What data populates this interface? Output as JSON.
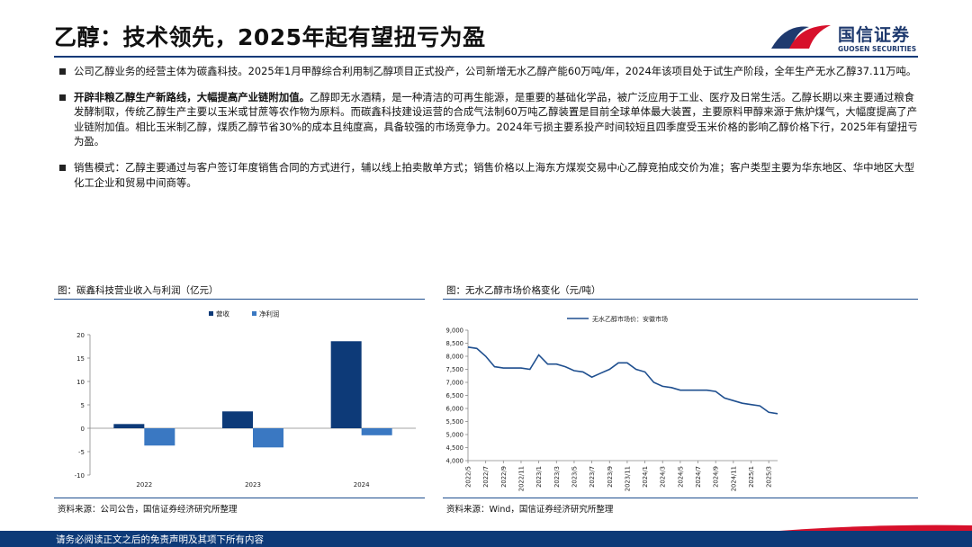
{
  "page": {
    "title": "乙醇：技术领先，2025年起有望扭亏为盈",
    "logo_cn": "国信证券",
    "logo_en": "GUOSEN SECURITIES",
    "footer": "请务必阅读正文之后的免责声明及其项下所有内容"
  },
  "bullets": [
    {
      "bold": "",
      "text": "公司乙醇业务的经营主体为碳鑫科技。2025年1月甲醇综合利用制乙醇项目正式投产，公司新增无水乙醇产能60万吨/年，2024年该项目处于试生产阶段，全年生产无水乙醇37.11万吨。"
    },
    {
      "bold": "开辟非粮乙醇生产新路线，大幅提高产业链附加值。",
      "text": "乙醇即无水酒精，是一种清洁的可再生能源，是重要的基础化学品，被广泛应用于工业、医疗及日常生活。乙醇长期以来主要通过粮食发酵制取，传统乙醇生产主要以玉米或甘蔗等农作物为原料。而碳鑫科技建设运营的合成气法制60万吨乙醇装置是目前全球单体最大装置，主要原料甲醇来源于焦炉煤气，大幅度提高了产业链附加值。相比玉米制乙醇，煤质乙醇节省30%的成本且纯度高，具备较强的市场竞争力。2024年亏损主要系投产时间较短且四季度受玉米价格的影响乙醇价格下行，2025年有望扭亏为盈。"
    },
    {
      "bold": "",
      "text": "销售模式：乙醇主要通过与客户签订年度销售合同的方式进行，辅以线上拍卖散单方式；销售价格以上海东方煤炭交易中心乙醇竞拍成交价为准；客户类型主要为华东地区、华中地区大型化工企业和贸易中间商等。"
    }
  ],
  "figure_left": {
    "title": "图：碳鑫科技营业收入与利润（亿元）",
    "source": "资料来源：公司公告，国信证券经济研究所整理"
  },
  "figure_right": {
    "title": "图：无水乙醇市场价格变化（元/吨）",
    "source": "资料来源：Wind，国信证券经济研究所整理"
  },
  "colors": {
    "revenue": "#0d3a78",
    "profit": "#3a78c2",
    "line": "#1f4f8f",
    "rule": "#1f4f8f",
    "footer": "#0d3a78",
    "accent_red": "#d7102b"
  },
  "chart_data": [
    {
      "type": "bar",
      "categories": [
        "2022",
        "2023",
        "2024"
      ],
      "series": [
        {
          "name": "营收",
          "values": [
            0.9,
            3.6,
            18.6
          ]
        },
        {
          "name": "净利润",
          "values": [
            -3.7,
            -4.1,
            -1.5
          ]
        }
      ],
      "ylim": [
        -10,
        20
      ],
      "yticks": [
        "-10",
        "-5",
        "0",
        "5",
        "10",
        "15",
        "20"
      ],
      "legend": "top-center"
    },
    {
      "type": "line",
      "series": [
        {
          "name": "无水乙醇市场价：安徽市场",
          "x": [
            "2022-05",
            "2022-06",
            "2022-07",
            "2022-08",
            "2022-09",
            "2022-10",
            "2022-11",
            "2022-12",
            "2023-01",
            "2023-02",
            "2023-03",
            "2023-04",
            "2023-05",
            "2023-06",
            "2023-07",
            "2023-08",
            "2023-09",
            "2023-10",
            "2023-11",
            "2023-12",
            "2024-01",
            "2024-02",
            "2024-03",
            "2024-04",
            "2024-05",
            "2024-06",
            "2024-07",
            "2024-08",
            "2024-09",
            "2024-10",
            "2024-11",
            "2024-12",
            "2025-01",
            "2025-02",
            "2025-03",
            "2025-04"
          ],
          "values": [
            8350,
            8300,
            8000,
            7600,
            7550,
            7550,
            7550,
            7500,
            8050,
            7700,
            7700,
            7600,
            7450,
            7400,
            7200,
            7350,
            7500,
            7750,
            7750,
            7500,
            7400,
            7000,
            6850,
            6800,
            6700,
            6700,
            6700,
            6700,
            6650,
            6400,
            6300,
            6200,
            6150,
            6100,
            5850,
            5800
          ]
        }
      ],
      "ylim": [
        4000,
        9000
      ],
      "yticks": [
        "4,000",
        "4,500",
        "5,000",
        "5,500",
        "6,000",
        "6,500",
        "7,000",
        "7,500",
        "8,000",
        "8,500",
        "9,000"
      ],
      "xticks": [
        "2022/5",
        "2022/7",
        "2022/9",
        "2022/11",
        "2023/1",
        "2023/3",
        "2023/5",
        "2023/7",
        "2023/9",
        "2023/11",
        "2024/1",
        "2024/3",
        "2024/5",
        "2024/7",
        "2024/9",
        "2024/11",
        "2025/1",
        "2025/3"
      ],
      "legend": "top-center"
    }
  ]
}
